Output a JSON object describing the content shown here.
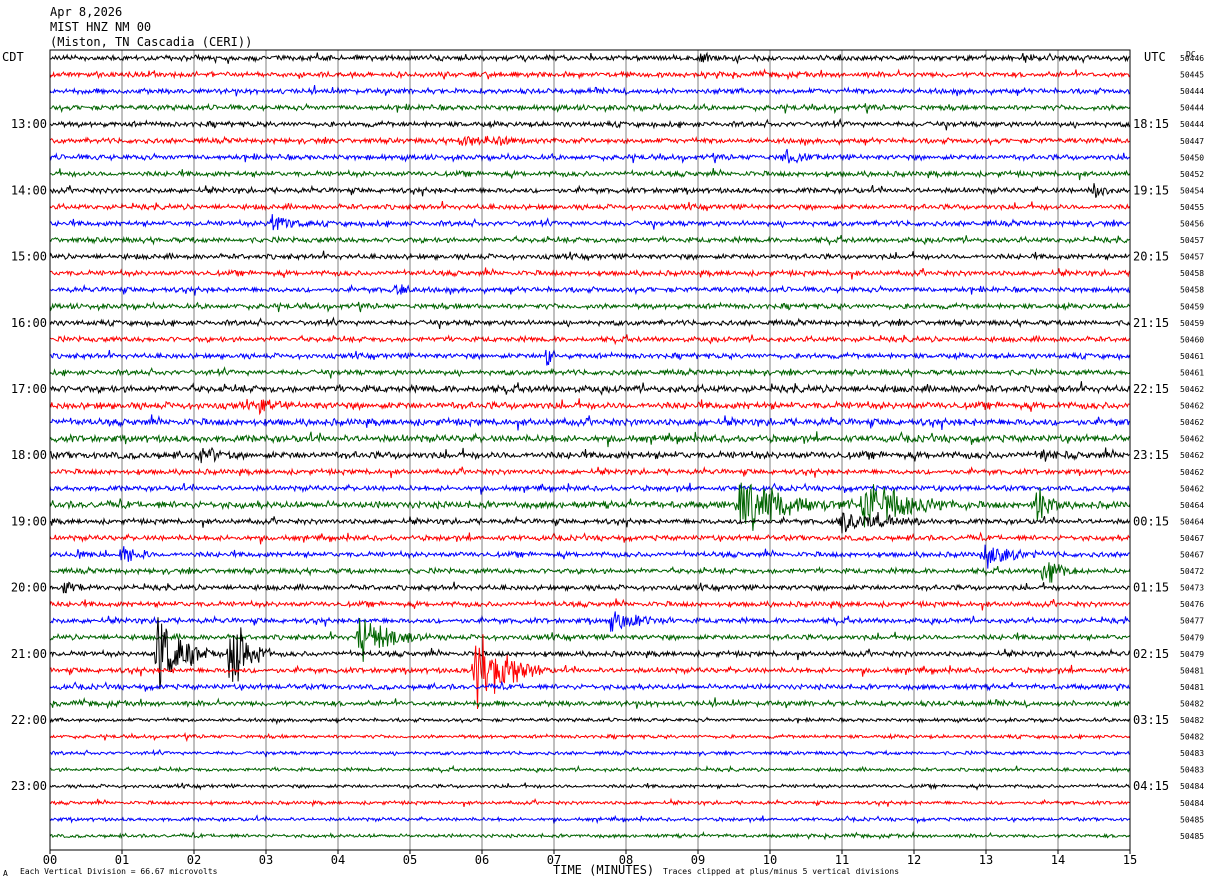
{
  "header": {
    "date": "Apr 8,2026",
    "station": "MIST HNZ NM 00",
    "location": "(Miston, TN Cascadia (CERI))"
  },
  "left_axis_label": "CDT",
  "right_axis_label": "UTC",
  "dc_label": "DC",
  "footer": {
    "vertical_division": "Each Vertical Division =   66.67 microvolts",
    "xlabel": "TIME (MINUTES)",
    "clip_note": "Traces clipped at plus/minus 5 vertical divisions",
    "corner_mark": "A"
  },
  "colors": {
    "trace_cycle": [
      "#000000",
      "#ff0000",
      "#0000ff",
      "#006400"
    ],
    "grid": "#000000"
  },
  "chart_data": {
    "type": "line",
    "title": "MIST HNZ NM 00",
    "xlabel": "TIME (MINUTES)",
    "xlim": [
      0,
      15
    ],
    "x_ticks": [
      "00",
      "01",
      "02",
      "03",
      "04",
      "05",
      "06",
      "07",
      "08",
      "09",
      "10",
      "11",
      "12",
      "13",
      "14",
      "15"
    ],
    "traces_per_hour": 4,
    "trace_count": 48,
    "left_hour_labels": [
      {
        "row": 4,
        "label": "13:00"
      },
      {
        "row": 8,
        "label": "14:00"
      },
      {
        "row": 12,
        "label": "15:00"
      },
      {
        "row": 16,
        "label": "16:00"
      },
      {
        "row": 20,
        "label": "17:00"
      },
      {
        "row": 24,
        "label": "18:00"
      },
      {
        "row": 28,
        "label": "19:00"
      },
      {
        "row": 32,
        "label": "20:00"
      },
      {
        "row": 36,
        "label": "21:00"
      },
      {
        "row": 40,
        "label": "22:00"
      },
      {
        "row": 44,
        "label": "23:00"
      }
    ],
    "right_hour_labels": [
      {
        "row": 4,
        "label": "18:15"
      },
      {
        "row": 8,
        "label": "19:15"
      },
      {
        "row": 12,
        "label": "20:15"
      },
      {
        "row": 16,
        "label": "21:15"
      },
      {
        "row": 20,
        "label": "22:15"
      },
      {
        "row": 24,
        "label": "23:15"
      },
      {
        "row": 28,
        "label": "00:15"
      },
      {
        "row": 32,
        "label": "01:15"
      },
      {
        "row": 36,
        "label": "02:15"
      },
      {
        "row": 40,
        "label": "03:15"
      },
      {
        "row": 44,
        "label": "04:15"
      }
    ],
    "dc_values": [
      "50446",
      "50445",
      "50444",
      "50444",
      "50444",
      "50447",
      "50450",
      "50452",
      "50454",
      "50455",
      "50456",
      "50457",
      "50457",
      "50458",
      "50458",
      "50459",
      "50459",
      "50460",
      "50461",
      "50461",
      "50462",
      "50462",
      "50462",
      "50462",
      "50462",
      "50462",
      "50462",
      "50464",
      "50464",
      "50467",
      "50467",
      "50472",
      "50473",
      "50476",
      "50477",
      "50479",
      "50479",
      "50481",
      "50481",
      "50482",
      "50482",
      "50482",
      "50483",
      "50483",
      "50484",
      "50484",
      "50485",
      "50485"
    ],
    "noise_level": [
      3,
      3,
      3,
      3,
      3,
      3,
      3,
      3,
      3,
      3,
      3,
      3,
      3,
      3,
      3,
      3,
      3,
      3,
      3,
      3,
      4,
      4,
      4,
      4,
      4,
      3,
      3,
      4,
      3,
      3,
      3,
      3,
      3,
      3,
      3,
      3,
      3,
      3,
      3,
      3,
      2,
      2,
      2,
      2,
      2,
      2,
      2,
      2
    ],
    "events": [
      {
        "row": 0,
        "minute": 9.0,
        "amplitude": 4,
        "duration": 0.8
      },
      {
        "row": 0,
        "minute": 13.5,
        "amplitude": 4,
        "duration": 0.6
      },
      {
        "row": 5,
        "minute": 5.7,
        "amplitude": 5,
        "duration": 2.0
      },
      {
        "row": 6,
        "minute": 10.2,
        "amplitude": 8,
        "duration": 0.6
      },
      {
        "row": 8,
        "minute": 14.5,
        "amplitude": 18,
        "duration": 0.2
      },
      {
        "row": 10,
        "minute": 3.1,
        "amplitude": 12,
        "duration": 0.6
      },
      {
        "row": 14,
        "minute": 4.8,
        "amplitude": 9,
        "duration": 0.3
      },
      {
        "row": 18,
        "minute": 6.9,
        "amplitude": 18,
        "duration": 0.2
      },
      {
        "row": 21,
        "minute": 2.9,
        "amplitude": 14,
        "duration": 0.4
      },
      {
        "row": 24,
        "minute": 2.1,
        "amplitude": 16,
        "duration": 0.5
      },
      {
        "row": 24,
        "minute": 13.8,
        "amplitude": 8,
        "duration": 0.4
      },
      {
        "row": 27,
        "minute": 9.6,
        "amplitude": 38,
        "duration": 1.5
      },
      {
        "row": 27,
        "minute": 11.3,
        "amplitude": 35,
        "duration": 1.5
      },
      {
        "row": 27,
        "minute": 13.7,
        "amplitude": 28,
        "duration": 0.4
      },
      {
        "row": 28,
        "minute": 11.0,
        "amplitude": 14,
        "duration": 1.3
      },
      {
        "row": 30,
        "minute": 0.4,
        "amplitude": 14,
        "duration": 0.2
      },
      {
        "row": 30,
        "minute": 1.0,
        "amplitude": 18,
        "duration": 0.4
      },
      {
        "row": 30,
        "minute": 13.0,
        "amplitude": 16,
        "duration": 0.8
      },
      {
        "row": 31,
        "minute": 13.8,
        "amplitude": 18,
        "duration": 0.6
      },
      {
        "row": 32,
        "minute": 0.2,
        "amplitude": 9,
        "duration": 0.4
      },
      {
        "row": 34,
        "minute": 7.8,
        "amplitude": 18,
        "duration": 0.8
      },
      {
        "row": 35,
        "minute": 4.3,
        "amplitude": 30,
        "duration": 1.0
      },
      {
        "row": 36,
        "minute": 1.5,
        "amplitude": 60,
        "duration": 0.8
      },
      {
        "row": 36,
        "minute": 2.5,
        "amplitude": 50,
        "duration": 0.6
      },
      {
        "row": 37,
        "minute": 5.9,
        "amplitude": 60,
        "duration": 1.0
      }
    ]
  }
}
